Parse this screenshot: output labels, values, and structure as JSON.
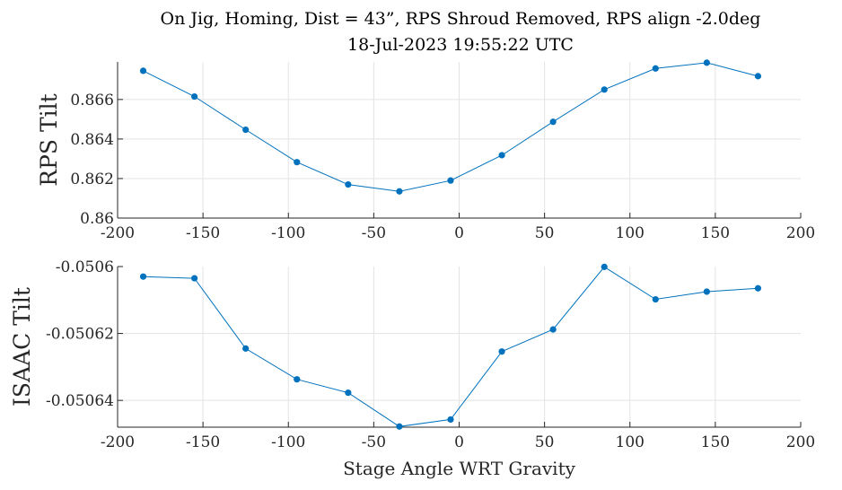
{
  "figure": {
    "title_line1": "On Jig, Homing, Dist = 43”, RPS Shroud Removed, RPS align -2.0deg",
    "title_line2": "18-Jul-2023 19:55:22 UTC",
    "series_color": "#0072BD"
  },
  "chart_data": [
    {
      "type": "line",
      "ylabel": "RPS Tilt",
      "xlabel": "",
      "xlim": [
        -200,
        200
      ],
      "ylim": [
        0.86,
        0.8679
      ],
      "xticks": [
        -200,
        -150,
        -100,
        -50,
        0,
        50,
        100,
        150,
        200
      ],
      "xtick_labels": [
        "-200",
        "-150",
        "-100",
        "-50",
        "0",
        "50",
        "100",
        "150",
        "200"
      ],
      "yticks": [
        0.86,
        0.862,
        0.864,
        0.866
      ],
      "ytick_labels": [
        "0.86",
        "0.862",
        "0.864",
        "0.866"
      ],
      "grid": true,
      "x": [
        -185,
        -155,
        -125,
        -95,
        -65,
        -35,
        -5,
        25,
        55,
        85,
        115,
        145,
        175
      ],
      "y": [
        0.86745,
        0.86615,
        0.86447,
        0.86283,
        0.8617,
        0.86135,
        0.8619,
        0.86318,
        0.86487,
        0.8665,
        0.86757,
        0.86786,
        0.86718
      ]
    },
    {
      "type": "line",
      "ylabel": "ISAAC Tilt",
      "xlabel": "Stage Angle WRT Gravity",
      "xlim": [
        -200,
        200
      ],
      "ylim": [
        -0.050648,
        -0.0506
      ],
      "xticks": [
        -200,
        -150,
        -100,
        -50,
        0,
        50,
        100,
        150,
        200
      ],
      "xtick_labels": [
        "-200",
        "-150",
        "-100",
        "-50",
        "0",
        "50",
        "100",
        "150",
        "200"
      ],
      "yticks": [
        -0.0506,
        -0.05062,
        -0.05064
      ],
      "ytick_labels": [
        "-0.0506",
        "-0.05062",
        "-0.05064"
      ],
      "grid": true,
      "x": [
        -185,
        -155,
        -125,
        -95,
        -65,
        -35,
        -5,
        25,
        55,
        85,
        115,
        145,
        175
      ],
      "y": [
        -0.050603,
        -0.0506035,
        -0.0506245,
        -0.0506337,
        -0.0506377,
        -0.0506478,
        -0.0506457,
        -0.0506254,
        -0.0506188,
        -0.0506001,
        -0.0506098,
        -0.0506075,
        -0.0506065
      ]
    }
  ]
}
